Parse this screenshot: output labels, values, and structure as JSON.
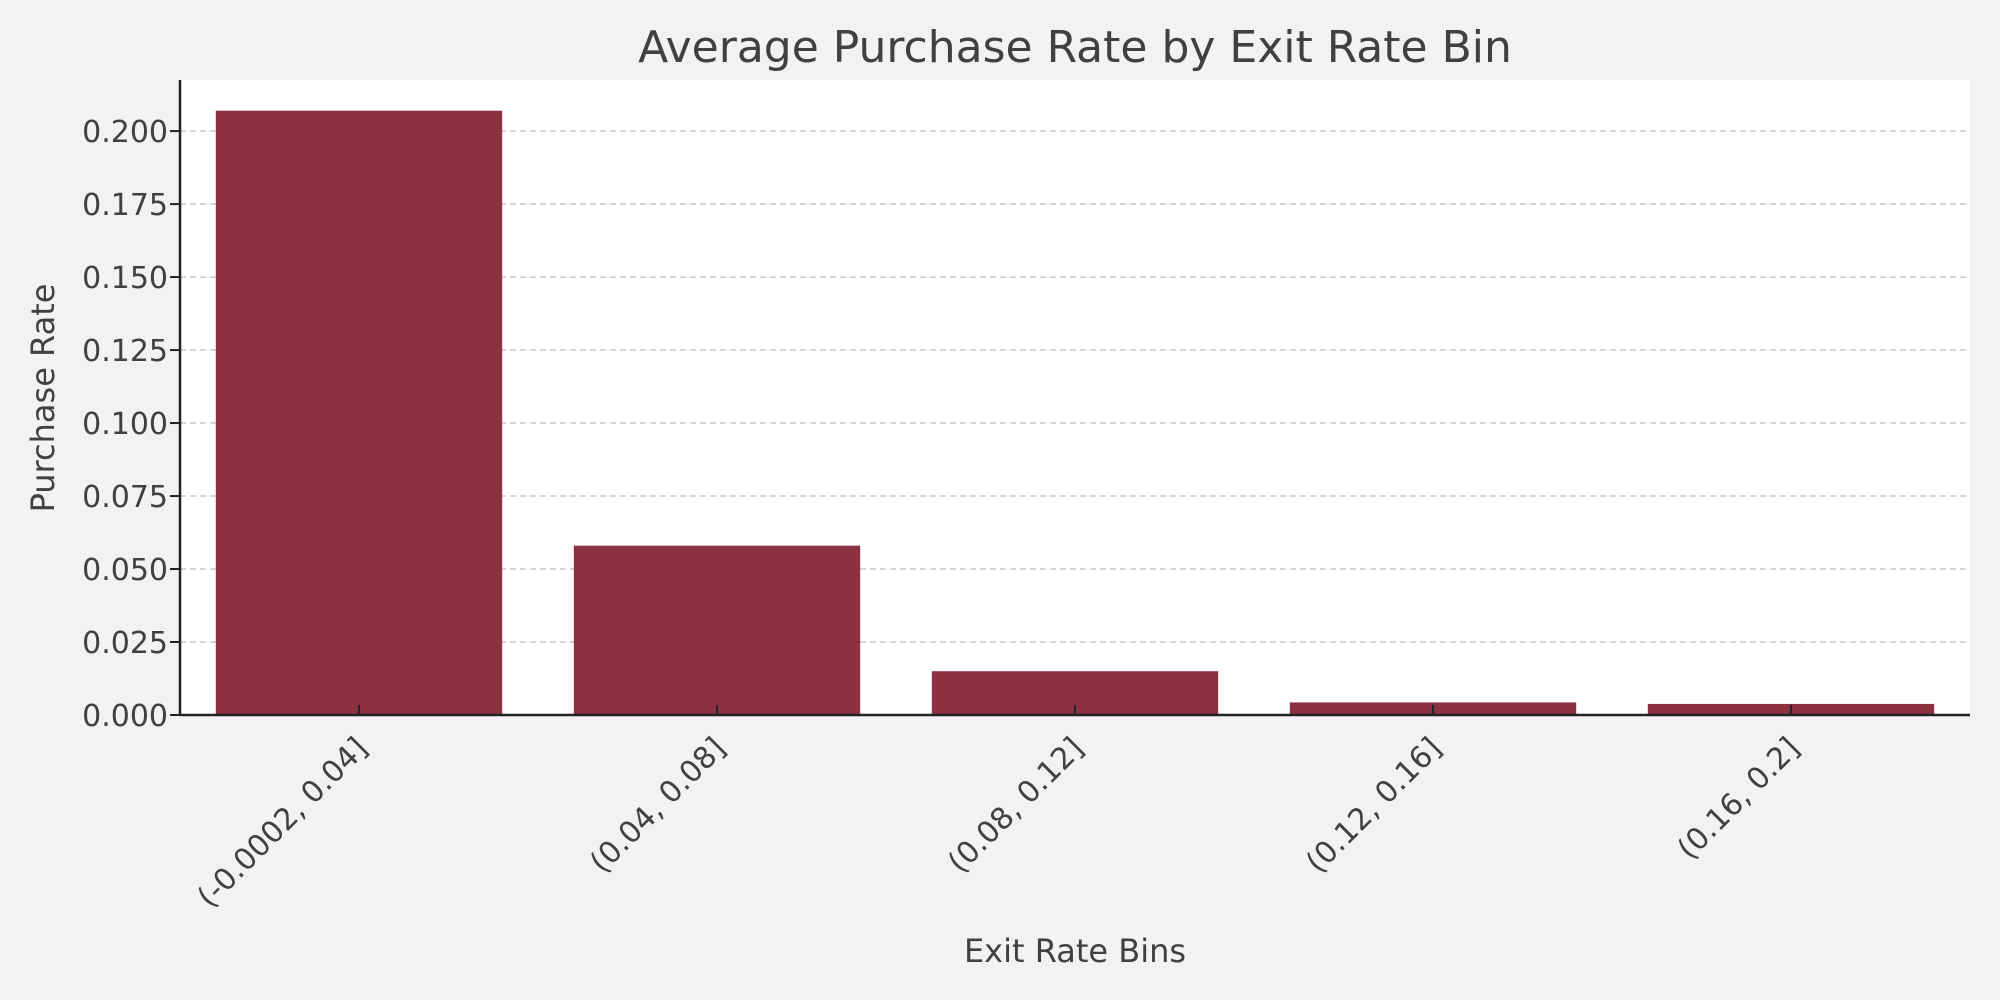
{
  "chart_data": {
    "type": "bar",
    "title": "Average Purchase Rate by Exit Rate Bin",
    "xlabel": "Exit Rate Bins",
    "ylabel": "Purchase Rate",
    "categories": [
      "(-0.0002, 0.04]",
      "(0.04, 0.08]",
      "(0.08, 0.12]",
      "(0.12, 0.16]",
      "(0.16, 0.2]"
    ],
    "values": [
      0.207,
      0.058,
      0.015,
      0.0043,
      0.0038
    ],
    "ylim": [
      0,
      0.2175
    ],
    "yticks": [
      "0.000",
      "0.025",
      "0.050",
      "0.075",
      "0.100",
      "0.125",
      "0.150",
      "0.175",
      "0.200"
    ],
    "grid": "horizontal dashed",
    "colors": {
      "bar": "#8b3141",
      "plot_background": "#ffffff",
      "figure_background": "#f2f2f4",
      "grid": "#c8c8c8",
      "axis": "#222222",
      "text": "#404040"
    }
  }
}
